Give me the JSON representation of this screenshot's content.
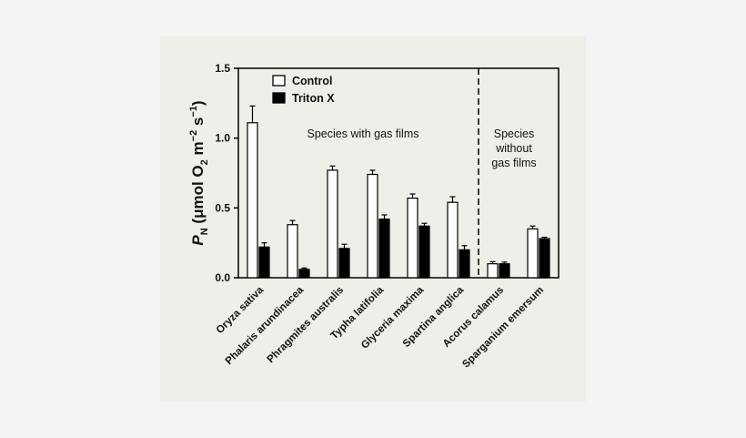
{
  "chart_data": {
    "type": "bar",
    "ylabel_main": "P",
    "ylabel_sub": "N",
    "ylabel_units_a": " (μmol O",
    "ylabel_units_b": "2",
    "ylabel_units_c": " m",
    "ylabel_units_d": "−2",
    "ylabel_units_e": " s",
    "ylabel_units_f": "−1",
    "ylabel_units_g": ")",
    "ylim": [
      0,
      1.5
    ],
    "yticks": [
      0.0,
      0.5,
      1.0,
      1.5
    ],
    "ytick_labels": [
      "0.0",
      "0.5",
      "1.0",
      "1.5"
    ],
    "categories": [
      "Oryza sativa",
      "Phalaris arundinacea",
      "Phragmites australis",
      "Typha latifolia",
      "Glyceria maxima",
      "Spartina anglica",
      "Acorus calamus",
      "Sparganium emersum"
    ],
    "series": [
      {
        "name": "Control",
        "color": "#ffffff",
        "values": [
          1.11,
          0.38,
          0.77,
          0.74,
          0.57,
          0.54,
          0.1,
          0.35
        ],
        "errors": [
          0.12,
          0.03,
          0.03,
          0.03,
          0.03,
          0.04,
          0.015,
          0.02
        ]
      },
      {
        "name": "Triton X",
        "color": "#000000",
        "values": [
          0.22,
          0.06,
          0.21,
          0.42,
          0.37,
          0.2,
          0.1,
          0.28
        ],
        "errors": [
          0.03,
          0.01,
          0.03,
          0.03,
          0.02,
          0.03,
          0.012,
          0.01
        ]
      }
    ],
    "annotations": {
      "left_group": "Species with gas films",
      "right_group_lines": [
        "Species",
        "without",
        "gas films"
      ]
    },
    "divider_after_category": 5,
    "legend_position": "top-left"
  }
}
